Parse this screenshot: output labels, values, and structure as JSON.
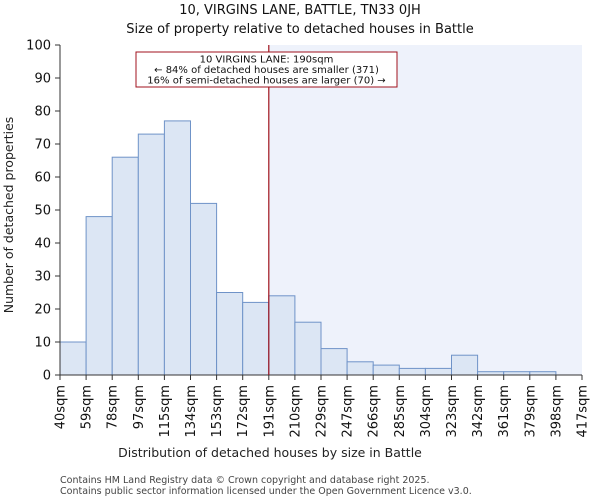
{
  "chart_data": {
    "type": "bar",
    "title": "10, VIRGINS LANE, BATTLE, TN33 0JH",
    "subtitle": "Size of property relative to detached houses in Battle",
    "xlabel": "Distribution of detached houses by size in Battle",
    "ylabel": "Number of detached properties",
    "ylim": [
      0,
      100
    ],
    "yticks": [
      0,
      10,
      20,
      30,
      40,
      50,
      60,
      70,
      80,
      90,
      100
    ],
    "bin_edges": [
      "40sqm",
      "59sqm",
      "78sqm",
      "97sqm",
      "115sqm",
      "134sqm",
      "153sqm",
      "172sqm",
      "191sqm",
      "210sqm",
      "229sqm",
      "247sqm",
      "266sqm",
      "285sqm",
      "304sqm",
      "323sqm",
      "342sqm",
      "361sqm",
      "379sqm",
      "398sqm",
      "417sqm"
    ],
    "values": [
      10,
      48,
      66,
      73,
      77,
      52,
      25,
      22,
      24,
      16,
      8,
      4,
      3,
      2,
      2,
      6,
      1,
      1,
      1,
      0
    ],
    "marker": {
      "bin_position": 8,
      "label_line1": "10 VIRGINS LANE: 190sqm",
      "label_line2": "← 84% of detached houses are smaller (371)",
      "label_line3": "16% of semi-detached houses are larger (70) →"
    },
    "grid": false
  },
  "footer": {
    "line1": "Contains HM Land Registry data © Crown copyright and database right 2025.",
    "line2": "Contains public sector information licensed under the Open Government Licence v3.0."
  },
  "colors": {
    "bar_fill": "#dce6f4",
    "bar_stroke": "#6f93c8",
    "marker": "#a0121c",
    "shade": "#eef2fb"
  }
}
